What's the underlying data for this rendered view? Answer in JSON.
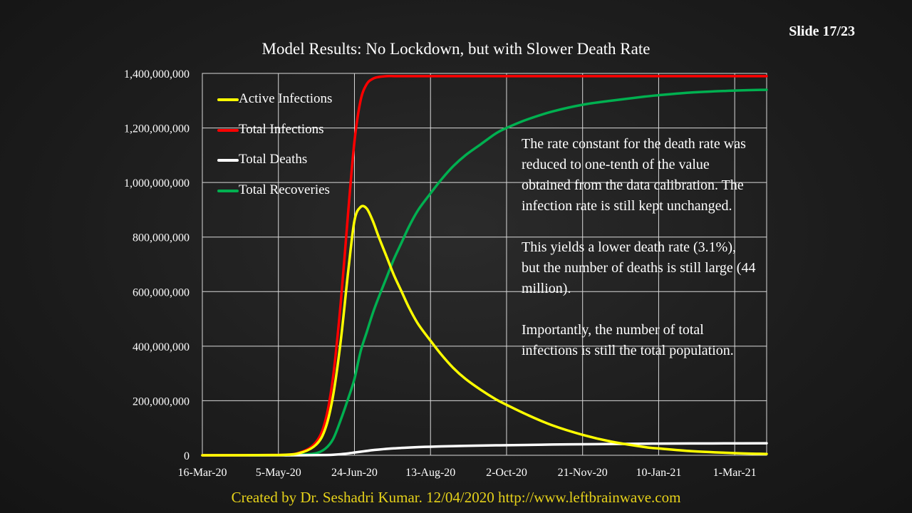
{
  "slide": {
    "number_label": "Slide 17/23"
  },
  "footer": {
    "credit": "Created by Dr. Seshadri Kumar. 12/04/2020 http://www.leftbrainwave.com"
  },
  "annotation": {
    "paragraphs": [
      "The rate constant for the death rate was reduced to one-tenth of the value obtained from the data calibration. The infection rate is still kept unchanged.",
      "This yields a lower death rate (3.1%), but the number of deaths is still large (44 million).",
      "Importantly, the number of total infections is still the total population."
    ]
  },
  "legend": {
    "items": [
      {
        "label": "Active Infections",
        "color": "#ffff00"
      },
      {
        "label": "Total Infections",
        "color": "#ff0000"
      },
      {
        "label": "Total Deaths",
        "color": "#ffffff"
      },
      {
        "label": "Total Recoveries",
        "color": "#00b050"
      }
    ]
  },
  "chart_data": {
    "type": "line",
    "title": "Model Results: No Lockdown, but with Slower Death Rate",
    "xlabel": "",
    "ylabel": "",
    "x_tick_labels": [
      "16-Mar-20",
      "5-May-20",
      "24-Jun-20",
      "13-Aug-20",
      "2-Oct-20",
      "21-Nov-20",
      "10-Jan-21",
      "1-Mar-21"
    ],
    "y_tick_labels": [
      "0",
      "200,000,000",
      "400,000,000",
      "600,000,000",
      "800,000,000",
      "1,000,000,000",
      "1,200,000,000",
      "1,400,000,000"
    ],
    "ylim": [
      0,
      1400000000
    ],
    "xlim": [
      "2020-03-16",
      "2021-03-22"
    ],
    "grid": true,
    "legend_position": "top-left",
    "x": [
      "2020-03-16",
      "2020-05-05",
      "2020-05-20",
      "2020-05-30",
      "2020-06-05",
      "2020-06-10",
      "2020-06-15",
      "2020-06-20",
      "2020-06-24",
      "2020-06-28",
      "2020-07-02",
      "2020-07-06",
      "2020-07-10",
      "2020-07-15",
      "2020-07-20",
      "2020-07-25",
      "2020-07-30",
      "2020-08-05",
      "2020-08-13",
      "2020-08-20",
      "2020-08-28",
      "2020-09-05",
      "2020-09-15",
      "2020-09-25",
      "2020-10-02",
      "2020-10-15",
      "2020-11-01",
      "2020-11-21",
      "2020-12-10",
      "2021-01-01",
      "2021-01-10",
      "2021-02-01",
      "2021-03-01",
      "2021-03-22"
    ],
    "series": [
      {
        "name": "Active Infections",
        "color": "#ffff00",
        "values": [
          0,
          1000000,
          10000000,
          40000000,
          100000000,
          220000000,
          420000000,
          680000000,
          860000000,
          910000000,
          905000000,
          860000000,
          800000000,
          730000000,
          660000000,
          600000000,
          540000000,
          480000000,
          420000000,
          370000000,
          320000000,
          280000000,
          240000000,
          205000000,
          185000000,
          150000000,
          110000000,
          75000000,
          50000000,
          30000000,
          25000000,
          15000000,
          8000000,
          5000000
        ]
      },
      {
        "name": "Total Infections",
        "color": "#ff0000",
        "values": [
          0,
          1000000,
          12000000,
          50000000,
          130000000,
          290000000,
          560000000,
          900000000,
          1150000000,
          1300000000,
          1360000000,
          1380000000,
          1387000000,
          1390000000,
          1390000000,
          1390000000,
          1390000000,
          1390000000,
          1390000000,
          1390000000,
          1390000000,
          1390000000,
          1390000000,
          1390000000,
          1390000000,
          1390000000,
          1390000000,
          1390000000,
          1390000000,
          1390000000,
          1390000000,
          1390000000,
          1390000000,
          1390000000
        ]
      },
      {
        "name": "Total Deaths",
        "color": "#ffffff",
        "values": [
          0,
          0,
          0,
          500000,
          1000000,
          2000000,
          4000000,
          7000000,
          10000000,
          13000000,
          16000000,
          19000000,
          21000000,
          23500000,
          25500000,
          27000000,
          28500000,
          30000000,
          31500000,
          32500000,
          33500000,
          34500000,
          35500000,
          36500000,
          37000000,
          38000000,
          39500000,
          40500000,
          41500000,
          42500000,
          42800000,
          43300000,
          43700000,
          44000000
        ]
      },
      {
        "name": "Total Recoveries",
        "color": "#00b050",
        "values": [
          0,
          0,
          2000000,
          8000000,
          25000000,
          60000000,
          130000000,
          210000000,
          280000000,
          380000000,
          450000000,
          520000000,
          580000000,
          650000000,
          720000000,
          780000000,
          840000000,
          900000000,
          960000000,
          1010000000,
          1060000000,
          1100000000,
          1140000000,
          1180000000,
          1200000000,
          1230000000,
          1260000000,
          1285000000,
          1300000000,
          1315000000,
          1320000000,
          1330000000,
          1337000000,
          1340000000
        ]
      }
    ]
  }
}
